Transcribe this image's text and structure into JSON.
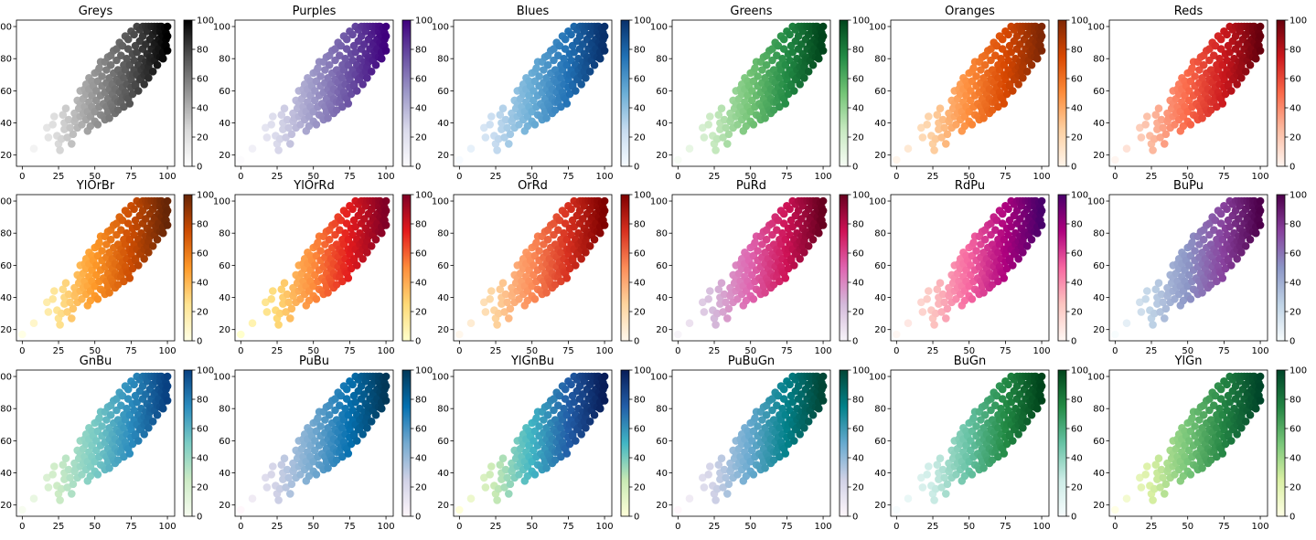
{
  "chart_data": {
    "type": "scatter",
    "rows": 3,
    "cols": 6,
    "panels": [
      {
        "title": "Greys",
        "cmap": [
          "#ffffff",
          "#d9d9d9",
          "#969696",
          "#525252",
          "#000000"
        ]
      },
      {
        "title": "Purples",
        "cmap": [
          "#fcfbfd",
          "#dadaeb",
          "#9e9ac8",
          "#6a51a3",
          "#3f007d"
        ]
      },
      {
        "title": "Blues",
        "cmap": [
          "#f7fbff",
          "#c6dbef",
          "#6baed6",
          "#2171b5",
          "#08306b"
        ]
      },
      {
        "title": "Greens",
        "cmap": [
          "#f7fcf5",
          "#c7e9c0",
          "#74c476",
          "#238b45",
          "#00441b"
        ]
      },
      {
        "title": "Oranges",
        "cmap": [
          "#fff5eb",
          "#fdd0a2",
          "#fd8d3c",
          "#d94801",
          "#7f2704"
        ]
      },
      {
        "title": "Reds",
        "cmap": [
          "#fff5f0",
          "#fcbba1",
          "#fb6a4a",
          "#cb181d",
          "#67000d"
        ]
      },
      {
        "title": "YlOrBr",
        "cmap": [
          "#ffffe5",
          "#fee391",
          "#fe9929",
          "#cc4c02",
          "#662506"
        ]
      },
      {
        "title": "YlOrRd",
        "cmap": [
          "#ffffcc",
          "#fed976",
          "#fd8d3c",
          "#e31a1c",
          "#800026"
        ]
      },
      {
        "title": "OrRd",
        "cmap": [
          "#fff7ec",
          "#fdd49e",
          "#fc8d59",
          "#d7301f",
          "#7f0000"
        ]
      },
      {
        "title": "PuRd",
        "cmap": [
          "#f7f4f9",
          "#d4b9da",
          "#df65b0",
          "#ce1256",
          "#67001f"
        ]
      },
      {
        "title": "RdPu",
        "cmap": [
          "#fff7f3",
          "#fcc5c0",
          "#f768a1",
          "#ae017e",
          "#49006a"
        ]
      },
      {
        "title": "BuPu",
        "cmap": [
          "#f7fcfd",
          "#bfd3e6",
          "#8c96c6",
          "#88419d",
          "#4d004b"
        ]
      },
      {
        "title": "GnBu",
        "cmap": [
          "#f7fcf0",
          "#ccebc5",
          "#7bccc4",
          "#2b8cbe",
          "#084081"
        ]
      },
      {
        "title": "PuBu",
        "cmap": [
          "#fff7fb",
          "#d0d1e6",
          "#74a9cf",
          "#0570b0",
          "#023858"
        ]
      },
      {
        "title": "YlGnBu",
        "cmap": [
          "#ffffd9",
          "#c7e9b4",
          "#41b6c4",
          "#225ea8",
          "#081d58"
        ]
      },
      {
        "title": "PuBuGn",
        "cmap": [
          "#fff7fb",
          "#d0d1e6",
          "#67a9cf",
          "#02818a",
          "#014636"
        ]
      },
      {
        "title": "BuGn",
        "cmap": [
          "#f7fcfd",
          "#ccece6",
          "#66c2a4",
          "#238b45",
          "#00441b"
        ]
      },
      {
        "title": "YlGn",
        "cmap": [
          "#ffffe5",
          "#d9f0a3",
          "#78c679",
          "#238443",
          "#004529"
        ]
      }
    ],
    "x_ticks": [
      "0",
      "25",
      "50",
      "75",
      "100"
    ],
    "y_ticks": [
      "20",
      "40",
      "60",
      "80",
      "100"
    ],
    "colorbar_ticks": [
      "0",
      "20",
      "40",
      "60",
      "80",
      "100"
    ],
    "xlim": [
      -4,
      105
    ],
    "ylim": [
      13,
      104
    ],
    "colorbar_range": [
      0,
      100
    ],
    "color_value": "x",
    "points": [
      [
        0,
        17
      ],
      [
        8,
        24
      ],
      [
        18,
        31
      ],
      [
        17,
        37
      ],
      [
        21,
        39
      ],
      [
        22,
        44
      ],
      [
        24,
        32
      ],
      [
        25,
        27
      ],
      [
        26,
        23
      ],
      [
        27,
        30
      ],
      [
        29,
        36
      ],
      [
        29,
        40
      ],
      [
        31,
        31
      ],
      [
        32,
        42
      ],
      [
        34,
        27
      ],
      [
        33,
        37
      ],
      [
        36,
        41
      ],
      [
        36,
        46
      ],
      [
        37,
        43
      ],
      [
        38,
        37
      ],
      [
        39,
        49
      ],
      [
        40,
        52
      ],
      [
        40,
        44
      ],
      [
        41,
        39
      ],
      [
        42,
        46
      ],
      [
        42,
        55
      ],
      [
        43,
        50
      ],
      [
        44,
        42
      ],
      [
        44,
        58
      ],
      [
        45,
        47
      ],
      [
        46,
        53
      ],
      [
        46,
        61
      ],
      [
        47,
        44
      ],
      [
        48,
        50
      ],
      [
        48,
        57
      ],
      [
        49,
        63
      ],
      [
        50,
        41
      ],
      [
        50,
        47
      ],
      [
        51,
        54
      ],
      [
        51,
        60
      ],
      [
        52,
        66
      ],
      [
        52,
        72
      ],
      [
        53,
        50
      ],
      [
        54,
        45
      ],
      [
        54,
        57
      ],
      [
        55,
        63
      ],
      [
        55,
        69
      ],
      [
        56,
        52
      ],
      [
        57,
        59
      ],
      [
        57,
        42
      ],
      [
        58,
        65
      ],
      [
        58,
        73
      ],
      [
        59,
        47
      ],
      [
        59,
        55
      ],
      [
        60,
        61
      ],
      [
        60,
        68
      ],
      [
        61,
        52
      ],
      [
        61,
        76
      ],
      [
        62,
        58
      ],
      [
        62,
        64
      ],
      [
        63,
        71
      ],
      [
        63,
        48
      ],
      [
        64,
        55
      ],
      [
        64,
        61
      ],
      [
        65,
        67
      ],
      [
        65,
        79
      ],
      [
        66,
        73
      ],
      [
        66,
        53
      ],
      [
        67,
        59
      ],
      [
        67,
        65
      ],
      [
        68,
        70
      ],
      [
        68,
        82
      ],
      [
        69,
        56
      ],
      [
        69,
        62
      ],
      [
        70,
        76
      ],
      [
        70,
        68
      ],
      [
        71,
        59
      ],
      [
        71,
        73
      ],
      [
        72,
        64
      ],
      [
        72,
        80
      ],
      [
        73,
        86
      ],
      [
        73,
        55
      ],
      [
        74,
        70
      ],
      [
        74,
        76
      ],
      [
        75,
        62
      ],
      [
        75,
        67
      ],
      [
        76,
        83
      ],
      [
        76,
        58
      ],
      [
        77,
        73
      ],
      [
        77,
        79
      ],
      [
        78,
        88
      ],
      [
        78,
        64
      ],
      [
        79,
        70
      ],
      [
        79,
        84
      ],
      [
        80,
        60
      ],
      [
        80,
        76
      ],
      [
        81,
        91
      ],
      [
        81,
        67
      ],
      [
        82,
        80
      ],
      [
        82,
        73
      ],
      [
        83,
        86
      ],
      [
        83,
        94
      ],
      [
        84,
        64
      ],
      [
        84,
        70
      ],
      [
        85,
        78
      ],
      [
        85,
        89
      ],
      [
        86,
        83
      ],
      [
        86,
        97
      ],
      [
        87,
        68
      ],
      [
        87,
        75
      ],
      [
        88,
        92
      ],
      [
        88,
        81
      ],
      [
        89,
        86
      ],
      [
        89,
        100
      ],
      [
        90,
        72
      ],
      [
        90,
        95
      ],
      [
        91,
        79
      ],
      [
        91,
        89
      ],
      [
        92,
        84
      ],
      [
        92,
        97
      ],
      [
        93,
        100
      ],
      [
        93,
        76
      ],
      [
        94,
        92
      ],
      [
        94,
        86
      ],
      [
        95,
        81
      ],
      [
        95,
        97
      ],
      [
        96,
        100
      ],
      [
        96,
        90
      ],
      [
        97,
        94
      ],
      [
        97,
        84
      ],
      [
        98,
        99
      ],
      [
        98,
        88
      ],
      [
        99,
        96
      ],
      [
        99,
        92
      ],
      [
        100,
        100
      ],
      [
        100,
        85
      ],
      [
        100,
        94
      ],
      [
        35,
        33
      ],
      [
        38,
        54
      ],
      [
        43,
        61
      ],
      [
        45,
        35
      ],
      [
        47,
        38
      ],
      [
        52,
        39
      ],
      [
        56,
        44
      ],
      [
        58,
        50
      ],
      [
        60,
        43
      ],
      [
        62,
        50
      ],
      [
        64,
        46
      ],
      [
        66,
        48
      ],
      [
        68,
        53
      ],
      [
        70,
        50
      ],
      [
        72,
        56
      ],
      [
        74,
        52
      ],
      [
        40,
        60
      ],
      [
        44,
        64
      ],
      [
        48,
        66
      ],
      [
        53,
        74
      ],
      [
        57,
        78
      ],
      [
        61,
        82
      ],
      [
        65,
        86
      ],
      [
        69,
        88
      ],
      [
        73,
        92
      ],
      [
        77,
        95
      ],
      [
        81,
        98
      ],
      [
        85,
        100
      ],
      [
        30,
        49
      ],
      [
        28,
        45
      ],
      [
        46,
        68
      ],
      [
        50,
        71
      ],
      [
        54,
        78
      ],
      [
        59,
        81
      ],
      [
        63,
        85
      ],
      [
        67,
        90
      ],
      [
        71,
        94
      ],
      [
        75,
        97
      ],
      [
        79,
        100
      ],
      [
        83,
        100
      ],
      [
        87,
        100
      ],
      [
        91,
        100
      ],
      [
        95,
        100
      ],
      [
        89,
        80
      ],
      [
        93,
        82
      ],
      [
        97,
        80
      ],
      [
        99,
        88
      ],
      [
        86,
        72
      ],
      [
        82,
        68
      ],
      [
        78,
        63
      ],
      [
        76,
        70
      ],
      [
        84,
        75
      ],
      [
        88,
        78
      ],
      [
        92,
        90
      ],
      [
        96,
        95
      ]
    ]
  }
}
